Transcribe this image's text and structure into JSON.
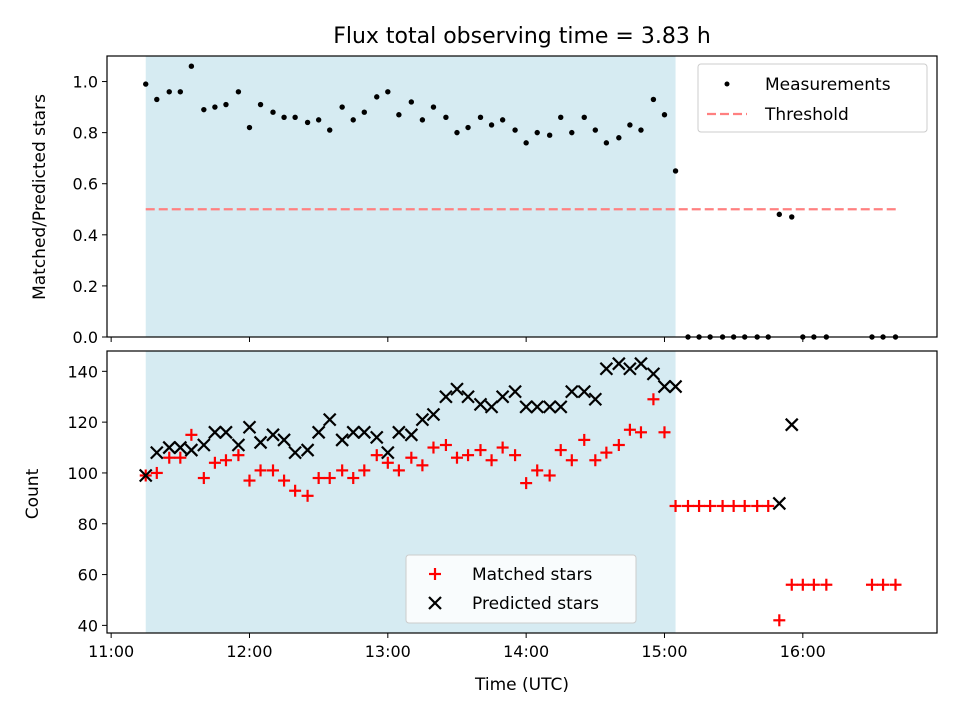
{
  "chart_data": {
    "title": "Flux total observing time = 3.83 h",
    "xlabel": "Time (UTC)",
    "x_ticks": [
      "11:00",
      "12:00",
      "13:00",
      "14:00",
      "15:00",
      "16:00"
    ],
    "x_tick_hours": [
      11,
      12,
      13,
      14,
      15,
      16
    ],
    "xlim_hours": [
      10.97,
      16.97
    ],
    "shaded_span_hours": [
      11.25,
      15.08
    ],
    "shade_color": "#add8e6",
    "panels": [
      {
        "type": "scatter",
        "ylabel": "Matched/Predicted stars",
        "ylim": [
          0,
          1.1
        ],
        "y_ticks": [
          "0.0",
          "0.2",
          "0.4",
          "0.6",
          "0.8",
          "1.0"
        ],
        "y_tick_values": [
          0,
          0.2,
          0.4,
          0.6,
          0.8,
          1.0
        ],
        "legend_position": "upper right",
        "threshold": {
          "name": "Threshold",
          "y": 0.5,
          "x_range_hours": [
            11.25,
            16.7
          ],
          "color": "#ff8080"
        },
        "series": [
          {
            "name": "Measurements",
            "marker": "dot",
            "color": "#000000",
            "points": [
              [
                11.25,
                0.99
              ],
              [
                11.33,
                0.93
              ],
              [
                11.42,
                0.96
              ],
              [
                11.5,
                0.96
              ],
              [
                11.58,
                1.06
              ],
              [
                11.67,
                0.89
              ],
              [
                11.75,
                0.9
              ],
              [
                11.83,
                0.91
              ],
              [
                11.92,
                0.96
              ],
              [
                12.0,
                0.82
              ],
              [
                12.08,
                0.91
              ],
              [
                12.17,
                0.88
              ],
              [
                12.25,
                0.86
              ],
              [
                12.33,
                0.86
              ],
              [
                12.42,
                0.84
              ],
              [
                12.5,
                0.85
              ],
              [
                12.58,
                0.81
              ],
              [
                12.67,
                0.9
              ],
              [
                12.75,
                0.85
              ],
              [
                12.83,
                0.88
              ],
              [
                12.92,
                0.94
              ],
              [
                13.0,
                0.96
              ],
              [
                13.08,
                0.87
              ],
              [
                13.17,
                0.92
              ],
              [
                13.25,
                0.85
              ],
              [
                13.33,
                0.9
              ],
              [
                13.42,
                0.86
              ],
              [
                13.5,
                0.8
              ],
              [
                13.58,
                0.82
              ],
              [
                13.67,
                0.86
              ],
              [
                13.75,
                0.83
              ],
              [
                13.83,
                0.85
              ],
              [
                13.92,
                0.81
              ],
              [
                14.0,
                0.76
              ],
              [
                14.08,
                0.8
              ],
              [
                14.17,
                0.79
              ],
              [
                14.25,
                0.86
              ],
              [
                14.33,
                0.8
              ],
              [
                14.42,
                0.86
              ],
              [
                14.5,
                0.81
              ],
              [
                14.58,
                0.76
              ],
              [
                14.67,
                0.78
              ],
              [
                14.75,
                0.83
              ],
              [
                14.83,
                0.81
              ],
              [
                14.92,
                0.93
              ],
              [
                15.0,
                0.87
              ],
              [
                15.08,
                0.65
              ],
              [
                15.17,
                0
              ],
              [
                15.25,
                0
              ],
              [
                15.33,
                0
              ],
              [
                15.42,
                0
              ],
              [
                15.5,
                0
              ],
              [
                15.58,
                0
              ],
              [
                15.67,
                0
              ],
              [
                15.75,
                0
              ],
              [
                15.83,
                0.48
              ],
              [
                15.92,
                0.47
              ],
              [
                16.0,
                0
              ],
              [
                16.08,
                0
              ],
              [
                16.17,
                0
              ],
              [
                16.5,
                0
              ],
              [
                16.58,
                0
              ],
              [
                16.67,
                0
              ]
            ]
          }
        ]
      },
      {
        "type": "scatter",
        "ylabel": "Count",
        "ylim": [
          37,
          148
        ],
        "y_ticks": [
          "40",
          "60",
          "80",
          "100",
          "120",
          "140"
        ],
        "y_tick_values": [
          40,
          60,
          80,
          100,
          120,
          140
        ],
        "legend_position": "lower center",
        "series": [
          {
            "name": "Matched stars",
            "marker": "plus",
            "color": "#ff0000",
            "points": [
              [
                11.25,
                99
              ],
              [
                11.33,
                100
              ],
              [
                11.42,
                106
              ],
              [
                11.5,
                106
              ],
              [
                11.58,
                115
              ],
              [
                11.67,
                98
              ],
              [
                11.75,
                104
              ],
              [
                11.83,
                105
              ],
              [
                11.92,
                107
              ],
              [
                12.0,
                97
              ],
              [
                12.08,
                101
              ],
              [
                12.17,
                101
              ],
              [
                12.25,
                97
              ],
              [
                12.33,
                93
              ],
              [
                12.42,
                91
              ],
              [
                12.5,
                98
              ],
              [
                12.58,
                98
              ],
              [
                12.67,
                101
              ],
              [
                12.75,
                98
              ],
              [
                12.83,
                101
              ],
              [
                12.92,
                107
              ],
              [
                13.0,
                104
              ],
              [
                13.08,
                101
              ],
              [
                13.17,
                106
              ],
              [
                13.25,
                103
              ],
              [
                13.33,
                110
              ],
              [
                13.42,
                111
              ],
              [
                13.5,
                106
              ],
              [
                13.58,
                107
              ],
              [
                13.67,
                109
              ],
              [
                13.75,
                105
              ],
              [
                13.83,
                110
              ],
              [
                13.92,
                107
              ],
              [
                14.0,
                96
              ],
              [
                14.08,
                101
              ],
              [
                14.17,
                99
              ],
              [
                14.25,
                109
              ],
              [
                14.33,
                105
              ],
              [
                14.42,
                113
              ],
              [
                14.5,
                105
              ],
              [
                14.58,
                108
              ],
              [
                14.67,
                111
              ],
              [
                14.75,
                117
              ],
              [
                14.83,
                116
              ],
              [
                14.92,
                129
              ],
              [
                15.0,
                116
              ],
              [
                15.08,
                87
              ],
              [
                15.17,
                87
              ],
              [
                15.25,
                87
              ],
              [
                15.33,
                87
              ],
              [
                15.42,
                87
              ],
              [
                15.5,
                87
              ],
              [
                15.58,
                87
              ],
              [
                15.67,
                87
              ],
              [
                15.75,
                87
              ],
              [
                15.83,
                42
              ],
              [
                15.92,
                56
              ],
              [
                16.0,
                56
              ],
              [
                16.08,
                56
              ],
              [
                16.17,
                56
              ],
              [
                16.5,
                56
              ],
              [
                16.58,
                56
              ],
              [
                16.67,
                56
              ]
            ]
          },
          {
            "name": "Predicted stars",
            "marker": "x",
            "color": "#000000",
            "points": [
              [
                11.25,
                99
              ],
              [
                11.33,
                108
              ],
              [
                11.42,
                110
              ],
              [
                11.5,
                110
              ],
              [
                11.58,
                109
              ],
              [
                11.67,
                111
              ],
              [
                11.75,
                116
              ],
              [
                11.83,
                116
              ],
              [
                11.92,
                111
              ],
              [
                12.0,
                118
              ],
              [
                12.08,
                112
              ],
              [
                12.17,
                115
              ],
              [
                12.25,
                113
              ],
              [
                12.33,
                108
              ],
              [
                12.42,
                109
              ],
              [
                12.5,
                116
              ],
              [
                12.58,
                121
              ],
              [
                12.67,
                113
              ],
              [
                12.75,
                116
              ],
              [
                12.83,
                116
              ],
              [
                12.92,
                114
              ],
              [
                13.0,
                108
              ],
              [
                13.08,
                116
              ],
              [
                13.17,
                115
              ],
              [
                13.25,
                121
              ],
              [
                13.33,
                123
              ],
              [
                13.42,
                130
              ],
              [
                13.5,
                133
              ],
              [
                13.58,
                130
              ],
              [
                13.67,
                127
              ],
              [
                13.75,
                126
              ],
              [
                13.83,
                130
              ],
              [
                13.92,
                132
              ],
              [
                14.0,
                126
              ],
              [
                14.08,
                126
              ],
              [
                14.17,
                126
              ],
              [
                14.25,
                126
              ],
              [
                14.33,
                132
              ],
              [
                14.42,
                132
              ],
              [
                14.5,
                129
              ],
              [
                14.58,
                141
              ],
              [
                14.67,
                143
              ],
              [
                14.75,
                141
              ],
              [
                14.83,
                143
              ],
              [
                14.92,
                139
              ],
              [
                15.0,
                134
              ],
              [
                15.08,
                134
              ],
              [
                15.83,
                88
              ],
              [
                15.92,
                119
              ]
            ]
          }
        ]
      }
    ]
  }
}
